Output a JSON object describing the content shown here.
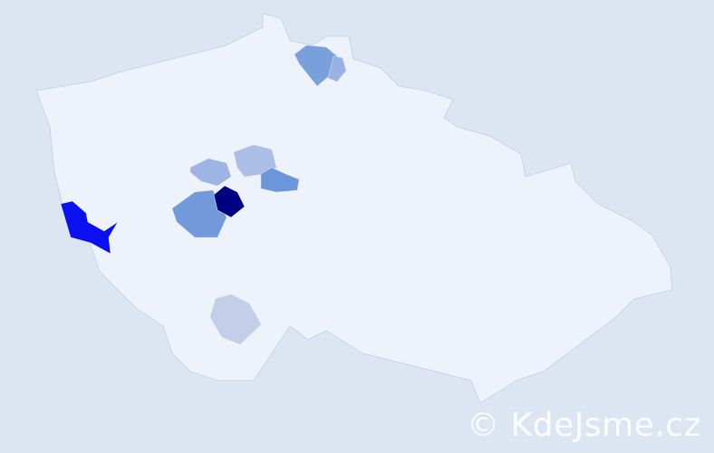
{
  "map": {
    "base_color": "#eef2fb",
    "border_color": "#c9d4ec",
    "regions": [
      {
        "id": "r1",
        "color": "#000080"
      },
      {
        "id": "r2",
        "color": "#0a10f0"
      },
      {
        "id": "r3",
        "color": "#7299da"
      },
      {
        "id": "r4",
        "color": "#9eb4e3"
      },
      {
        "id": "r5",
        "color": "#abbfe6"
      },
      {
        "id": "r6",
        "color": "#6b96d9"
      },
      {
        "id": "r7",
        "color": "#7aa0dc"
      },
      {
        "id": "r8",
        "color": "#98b2e4"
      },
      {
        "id": "r9",
        "color": "#c3cfe8"
      }
    ]
  },
  "watermark": "© KdeJsme.cz"
}
